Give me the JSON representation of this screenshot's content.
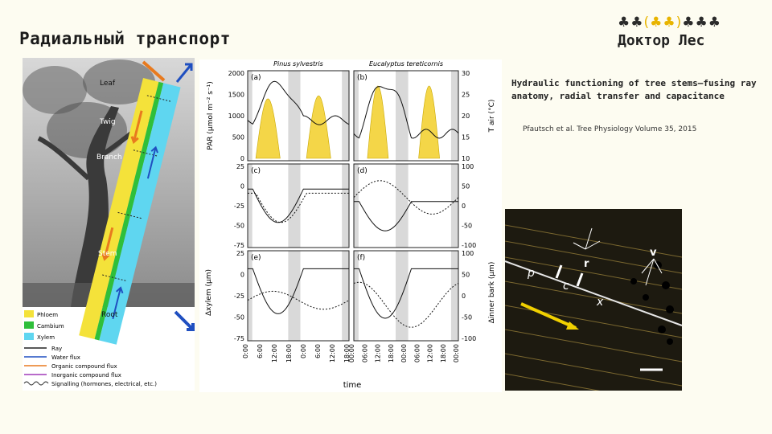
{
  "slide": {
    "title": "Радиальный транспорт",
    "logo_text": "Доктор Лес",
    "caption": "Hydraulic functioning of tree stems—fusing ray anatomy, radial transfer and capacitance",
    "citation": "Pfautsch et al. Tree Physiology Volume 35, 2015"
  },
  "tree_figure": {
    "labels": [
      "Leaf",
      "Twig",
      "Branch",
      "Stem",
      "Root"
    ],
    "legend": [
      {
        "label": "Phloem",
        "color": "#f4e23a"
      },
      {
        "label": "Cambium",
        "color": "#2fbf3a"
      },
      {
        "label": "Xylem",
        "color": "#5fd6f0"
      },
      {
        "label": "Ray",
        "color": "#222222"
      },
      {
        "label": "Water flux",
        "color": "#1f4fc0"
      },
      {
        "label": "Organic compound flux",
        "color": "#e87a1e"
      },
      {
        "label": "Inorganic compound flux",
        "color": "#a03ab8"
      },
      {
        "label": "Signalling (hormones, electrical, etc.)",
        "color": "#333333"
      }
    ]
  },
  "chart_data": {
    "type": "line",
    "columns": [
      "Pinus sylvestris",
      "Eucalyptus tereticornis"
    ],
    "panels": [
      "(a)",
      "(b)",
      "(c)",
      "(d)",
      "(e)",
      "(f)"
    ],
    "x_ticks": [
      [
        "0:00",
        "6:00",
        "12:00",
        "18:00",
        "0:00",
        "6:00",
        "12:00",
        "18:00"
      ],
      [
        "00:00",
        "06:00",
        "12:00",
        "18:00",
        "00:00",
        "06:00",
        "12:00",
        "18:00",
        "00:00"
      ]
    ],
    "xlabel": "time",
    "row1": {
      "ylabel": "PAR (μmol m⁻² s⁻¹)",
      "yticks": [
        0,
        500,
        1000,
        1500,
        2000
      ],
      "ylabel_right": "T air (°C)",
      "yticks_right": [
        10,
        15,
        20,
        25,
        30
      ],
      "par_peak_a": 1400,
      "par_peak_b": 1700
    },
    "row2": {
      "yticks_left": [
        -75,
        -50,
        -25,
        0,
        25
      ],
      "yticks_right": [
        -100,
        -50,
        0,
        50,
        100
      ]
    },
    "row3": {
      "yticks_left": [
        -75,
        -50,
        -25,
        0,
        25
      ],
      "yticks_right": [
        -100,
        -50,
        0,
        50,
        100
      ]
    },
    "ylabel_left_lower": "Δxylem (μm)",
    "ylabel_right_lower": "Δinner bark (μm)"
  },
  "micrograph": {
    "labels": [
      "r",
      "v",
      "p",
      "c",
      "x"
    ]
  }
}
